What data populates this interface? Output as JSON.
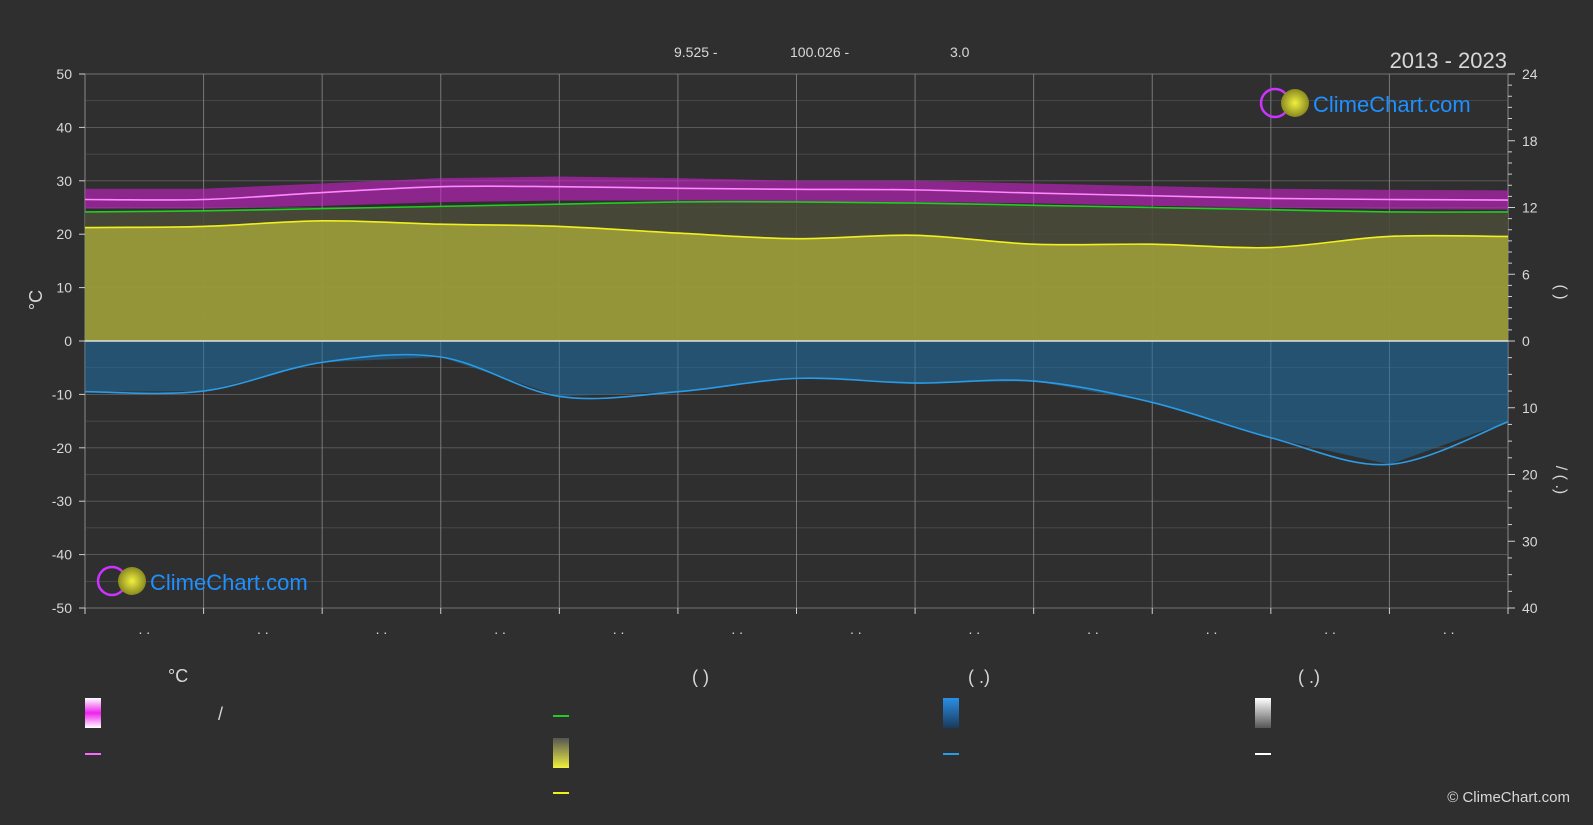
{
  "header": {
    "coords": [
      "9.525 -",
      "100.026 -",
      "3.0"
    ],
    "years": "2013 - 2023"
  },
  "watermark": "ClimeChart.com",
  "copyright": "© ClimeChart.com",
  "colors": {
    "background": "#2f2f2f",
    "grid": "#6a6a6a",
    "sunshine": "#c4c43a",
    "daylight": "#22cc22",
    "temp_range": "#cc22cc",
    "temp_mean": "#ff88ff",
    "sunshine_mean": "#f0f020",
    "precip": "#1e6fa8",
    "precip_mean": "#2a9be6",
    "brand": "#1e90ff"
  },
  "chart_data": {
    "type": "area",
    "x_month_tick_labels": [
      ". .",
      ". .",
      ". .",
      ". .",
      ". .",
      ". .",
      ". .",
      ". .",
      ". .",
      ". .",
      ". .",
      ". ."
    ],
    "y_left": {
      "label": "°C",
      "range": [
        -50,
        50
      ],
      "ticks": [
        50,
        40,
        30,
        20,
        10,
        0,
        -10,
        -20,
        -30,
        -40,
        -50
      ]
    },
    "y_right_top": {
      "label": "(   )",
      "range": [
        0,
        24
      ],
      "ticks": [
        24,
        18,
        12,
        6,
        0
      ]
    },
    "y_right_bottom": {
      "label": "/   (   .)",
      "range": [
        0,
        40
      ],
      "ticks": [
        0,
        10,
        20,
        30,
        40
      ]
    },
    "grid": true,
    "month_positions": [
      0,
      1,
      2,
      3,
      4,
      5,
      6,
      7,
      8,
      9,
      10,
      11,
      12
    ],
    "series": [
      {
        "key": "temp_max",
        "values": [
          28.5,
          28.5,
          29.5,
          30.5,
          30.8,
          30.5,
          30.0,
          30.0,
          29.5,
          29.0,
          28.5,
          28.3,
          28.2
        ]
      },
      {
        "key": "temp_min",
        "values": [
          24.8,
          24.8,
          25.3,
          26.0,
          26.3,
          26.3,
          26.2,
          26.0,
          25.8,
          25.3,
          25.0,
          24.7,
          24.6
        ]
      },
      {
        "key": "temp_mean",
        "values": [
          26.5,
          26.5,
          27.8,
          28.9,
          28.9,
          28.6,
          28.4,
          28.3,
          27.7,
          27.2,
          26.7,
          26.5,
          26.4
        ]
      },
      {
        "key": "daylight_hours",
        "values": [
          11.6,
          11.7,
          11.9,
          12.1,
          12.3,
          12.5,
          12.5,
          12.4,
          12.2,
          12.0,
          11.8,
          11.6,
          11.6
        ]
      },
      {
        "key": "sunshine_hours",
        "values": [
          10.2,
          10.3,
          10.8,
          10.5,
          10.3,
          9.7,
          9.2,
          9.5,
          8.7,
          8.7,
          8.4,
          9.4,
          9.4
        ]
      },
      {
        "key": "precipitation_mm_day",
        "values": [
          7.6,
          7.5,
          3.2,
          2.4,
          8.3,
          7.6,
          5.6,
          6.3,
          6.0,
          9.2,
          14.5,
          18.5,
          12.1
        ]
      }
    ]
  }
}
